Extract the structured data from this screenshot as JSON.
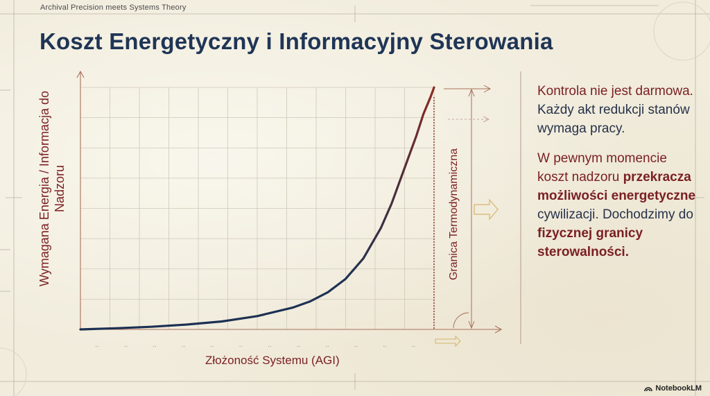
{
  "header": {
    "tagline": "Archival Precision meets Systems Theory",
    "title": "Koszt Energetyczny i Informacyjny Sterowania"
  },
  "chart_data": {
    "type": "line",
    "title": "Koszt Energetyczny i Informacyjny Sterowania",
    "xlabel": "Złożoność Systemu (AGI)",
    "ylabel": "Wymagana Energia / Informacja do Nadzoru",
    "xlim": [
      0,
      100
    ],
    "ylim": [
      0,
      100
    ],
    "grid": true,
    "series": [
      {
        "values_x": [
          0,
          10,
          20,
          30,
          40,
          50,
          60,
          65,
          70,
          75,
          80,
          85,
          88,
          91,
          93,
          95,
          97,
          99,
          100
        ],
        "values_y": [
          0,
          0.5,
          1.1,
          2,
          3.3,
          5.5,
          9,
          11.6,
          15.4,
          20.9,
          29.3,
          42,
          52,
          64,
          72,
          80,
          89,
          96,
          100
        ]
      }
    ],
    "annotations": [
      {
        "label": "Granica Termodynamiczna",
        "x": 100
      }
    ],
    "colors": {
      "curve_start": "#1b2f52",
      "curve_end": "#8c2a24",
      "axis": "#a8705a",
      "grid": "#cfc8b8",
      "limit": "#8c2a24"
    }
  },
  "side": {
    "para1_accent": "Kontrola nie jest darmowa.",
    "para1_rest": " Każdy akt redukcji stanów wymaga pracy.",
    "para2_accent": "W pewnym momencie koszt nadzoru ",
    "para2_strong1": "przekracza możliwości energetyczne",
    "para2_mid": " cywilizacji. Dochodzimy do ",
    "para2_strong2": "fizycznej granicy sterowalności."
  },
  "brand": {
    "label": "NotebookLM"
  }
}
